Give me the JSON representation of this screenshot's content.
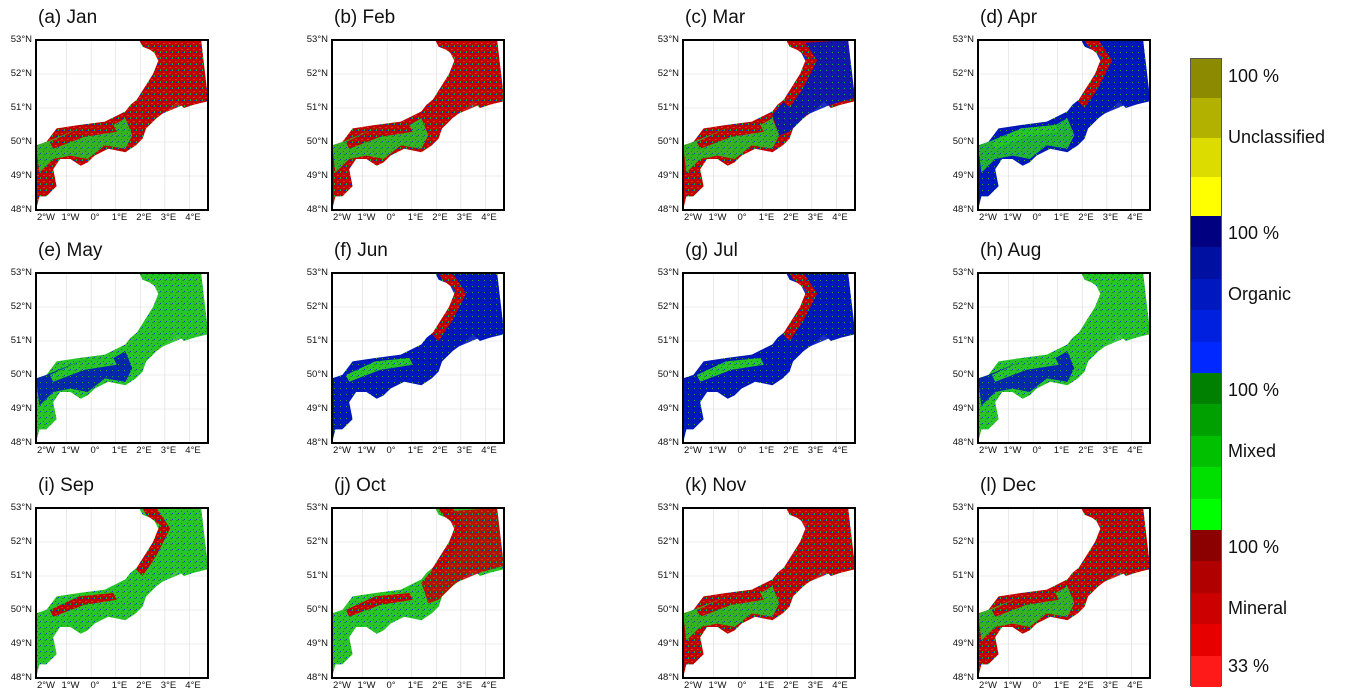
{
  "panels": [
    {
      "title": "(a) Jan",
      "dominant": "mineral"
    },
    {
      "title": "(b) Feb",
      "dominant": "mineral"
    },
    {
      "title": "(c) Mar",
      "dominant": "mineral-organic"
    },
    {
      "title": "(d) Apr",
      "dominant": "organic-mineral"
    },
    {
      "title": "(e) May",
      "dominant": "mixed-organic"
    },
    {
      "title": "(f) Jun",
      "dominant": "organic"
    },
    {
      "title": "(g) Jul",
      "dominant": "organic"
    },
    {
      "title": "(h) Aug",
      "dominant": "mixed-organic"
    },
    {
      "title": "(i) Sep",
      "dominant": "mixed"
    },
    {
      "title": "(j) Oct",
      "dominant": "mixed-mineral"
    },
    {
      "title": "(k) Nov",
      "dominant": "mineral"
    },
    {
      "title": "(l) Dec",
      "dominant": "mineral"
    }
  ],
  "lat_labels": [
    "53°N",
    "52°N",
    "51°N",
    "50°N",
    "49°N",
    "48°N"
  ],
  "lon_labels": [
    "2°W",
    "1°W",
    "0°",
    "1°E",
    "2°E",
    "3°E",
    "4°E"
  ],
  "legend": {
    "classes": [
      {
        "name": "Unclassified",
        "top_label": "100 %",
        "colors": [
          "#8c8a00",
          "#b3b100",
          "#dcdc00",
          "#ffff00"
        ]
      },
      {
        "name": "Organic",
        "top_label": "100 %",
        "colors": [
          "#000080",
          "#0010a0",
          "#0018c0",
          "#0020e0",
          "#0028ff"
        ]
      },
      {
        "name": "Mixed",
        "top_label": "100 %",
        "colors": [
          "#008000",
          "#00a000",
          "#00c000",
          "#00e000",
          "#00ff00"
        ]
      },
      {
        "name": "Mineral",
        "top_label": "100 %",
        "bottom_label": "33 %",
        "colors": [
          "#8b0000",
          "#b00000",
          "#cc0000",
          "#e60000",
          "#ff1a1a"
        ]
      }
    ]
  },
  "colors": {
    "mineral": "#c80000",
    "organic": "#0018c8",
    "mixed": "#22c422",
    "land": "#ffffff",
    "grid": "#dddddd",
    "frame": "#000000"
  }
}
